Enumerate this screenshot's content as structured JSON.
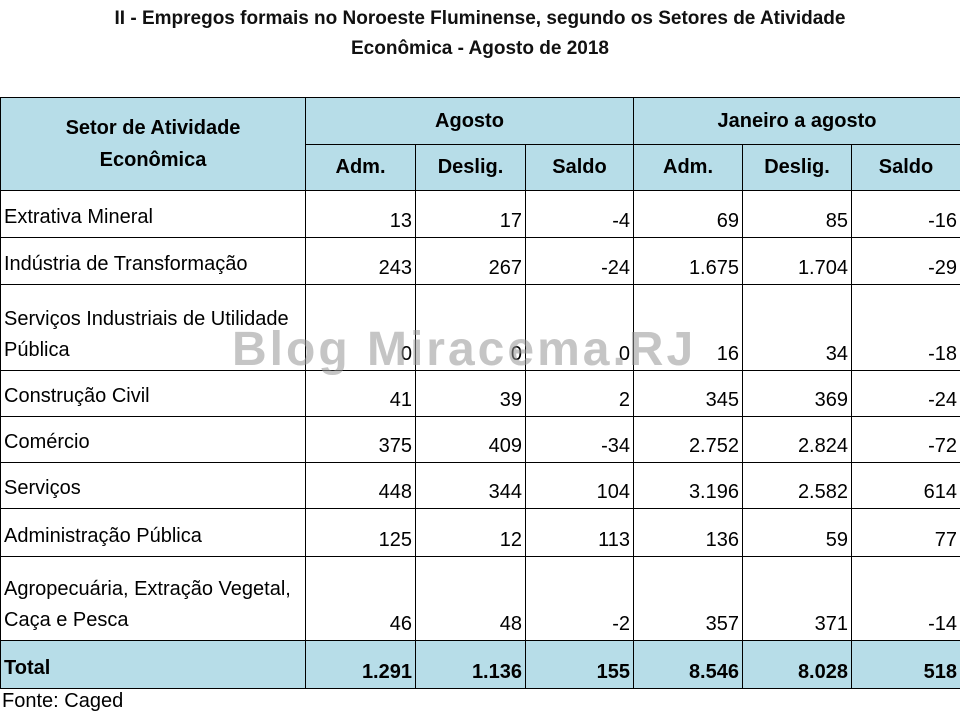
{
  "header": {
    "title_lines": [
      "II - Empregos formais no Noroeste Fluminense, segundo os Setores de Atividade",
      "Econômica - Agosto de 2018"
    ]
  },
  "table": {
    "corner": "Setor de Atividade Econômica",
    "groups": [
      "Agosto",
      "Janeiro a agosto"
    ],
    "subheaders": [
      "Adm.",
      "Deslig.",
      "Saldo",
      "Adm.",
      "Deslig.",
      "Saldo"
    ],
    "rows": [
      [
        "Extrativa Mineral",
        "13",
        "17",
        "-4",
        "69",
        "85",
        "-16"
      ],
      [
        "Indústria de Transformação",
        "243",
        "267",
        "-24",
        "1.675",
        "1.704",
        "-29"
      ],
      [
        "Serviços Industriais de Utilidade Pública",
        "0",
        "0",
        "0",
        "16",
        "34",
        "-18"
      ],
      [
        "Construção Civil",
        "41",
        "39",
        "2",
        "345",
        "369",
        "-24"
      ],
      [
        "Comércio",
        "375",
        "409",
        "-34",
        "2.752",
        "2.824",
        "-72"
      ],
      [
        "Serviços",
        "448",
        "344",
        "104",
        "3.196",
        "2.582",
        "614"
      ],
      [
        "Administração Pública",
        "125",
        "12",
        "113",
        "136",
        "59",
        "77"
      ],
      [
        "Agropecuária, Extração Vegetal, Caça e Pesca",
        "46",
        "48",
        "-2",
        "357",
        "371",
        "-14"
      ]
    ],
    "total": [
      "Total",
      "1.291",
      "1.136",
      "155",
      "8.546",
      "8.028",
      "518"
    ]
  },
  "source": "Fonte: Caged",
  "watermark": "Blog Miracema.RJ"
}
